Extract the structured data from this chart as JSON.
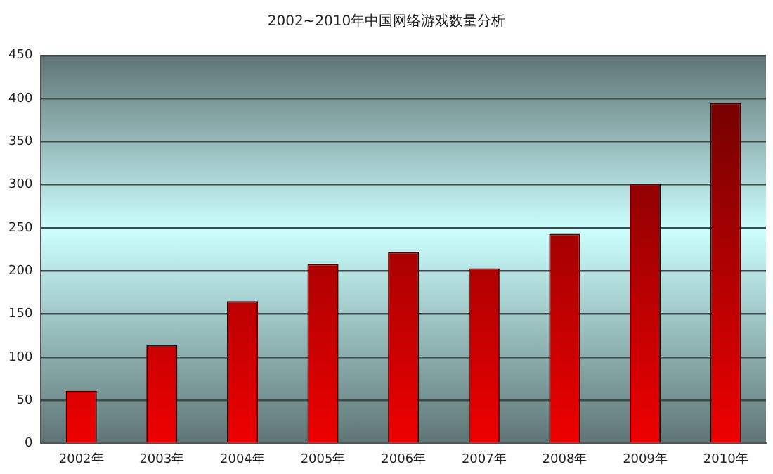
{
  "chart_data": {
    "type": "bar",
    "title": "2002~2010年中国网络游戏数量分析",
    "categories": [
      "2002年",
      "2003年",
      "2004年",
      "2005年",
      "2006年",
      "2007年",
      "2008年",
      "2009年",
      "2010年"
    ],
    "values": [
      61,
      114,
      165,
      208,
      222,
      203,
      243,
      301,
      395
    ],
    "color": "#ee0000",
    "ylim": [
      0,
      450
    ],
    "yticks": [
      0,
      50,
      100,
      150,
      200,
      250,
      300,
      350,
      400,
      450
    ],
    "grid": "y",
    "legend": false
  }
}
